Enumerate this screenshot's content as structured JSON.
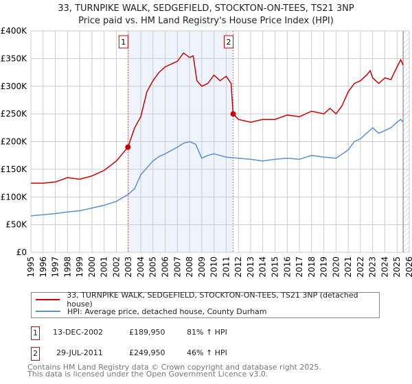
{
  "chart_data": {
    "type": "line",
    "title": "33, TURNPIKE WALK, SEDGEFIELD, STOCKTON-ON-TEES, TS21 3NP",
    "subtitle": "Price paid vs. HM Land Registry's House Price Index (HPI)",
    "xlim": [
      1995,
      2026
    ],
    "ylim": [
      0,
      400000
    ],
    "x_ticks": [
      "1995",
      "1996",
      "1997",
      "1998",
      "1999",
      "2000",
      "2001",
      "2002",
      "2003",
      "2004",
      "2005",
      "2006",
      "2007",
      "2008",
      "2009",
      "2010",
      "2011",
      "2012",
      "2013",
      "2014",
      "2015",
      "2016",
      "2017",
      "2018",
      "2019",
      "2020",
      "2021",
      "2022",
      "2023",
      "2024",
      "2025",
      "2026"
    ],
    "y_ticks": [
      {
        "v": 0,
        "label": "£0"
      },
      {
        "v": 50000,
        "label": "£50K"
      },
      {
        "v": 100000,
        "label": "£100K"
      },
      {
        "v": 150000,
        "label": "£150K"
      },
      {
        "v": 200000,
        "label": "£200K"
      },
      {
        "v": 250000,
        "label": "£250K"
      },
      {
        "v": 300000,
        "label": "£300K"
      },
      {
        "v": 350000,
        "label": "£350K"
      },
      {
        "v": 400000,
        "label": "£400K"
      }
    ],
    "grid": true,
    "series": [
      {
        "name": "33, TURNPIKE WALK, SEDGEFIELD, STOCKTON-ON-TEES, TS21 3NP (detached house)",
        "color": "#cc0000",
        "x": [
          1995,
          1996,
          1997,
          1998,
          1999,
          2000,
          2001,
          2002,
          2002.95,
          2003.5,
          2004,
          2004.5,
          2005,
          2005.5,
          2006,
          2006.5,
          2007,
          2007.5,
          2008,
          2008.3,
          2008.6,
          2009,
          2009.5,
          2010,
          2010.5,
          2011,
          2011.4,
          2011.57,
          2012,
          2013,
          2014,
          2015,
          2016,
          2017,
          2018,
          2019,
          2019.5,
          2020,
          2020.5,
          2021,
          2021.5,
          2022,
          2022.5,
          2022.8,
          2023,
          2023.5,
          2024,
          2024.5,
          2025,
          2025.3,
          2025.5
        ],
        "values": [
          125000,
          125000,
          127000,
          135000,
          132000,
          138000,
          148000,
          165000,
          189950,
          225000,
          245000,
          290000,
          310000,
          325000,
          335000,
          340000,
          345000,
          360000,
          352000,
          355000,
          310000,
          300000,
          305000,
          320000,
          310000,
          318000,
          305000,
          249950,
          240000,
          235000,
          240000,
          240000,
          248000,
          245000,
          255000,
          250000,
          260000,
          250000,
          265000,
          290000,
          305000,
          310000,
          320000,
          328000,
          315000,
          305000,
          315000,
          312000,
          335000,
          348000,
          338000
        ]
      },
      {
        "name": "HPI: Average price, detached house, County Durham",
        "color": "#5b8fd0",
        "x": [
          1995,
          1996,
          1997,
          1998,
          1999,
          2000,
          2001,
          2002,
          2003,
          2003.5,
          2004,
          2005,
          2005.5,
          2006,
          2007,
          2007.5,
          2008,
          2008.5,
          2009,
          2009.5,
          2010,
          2010.5,
          2011,
          2012,
          2013,
          2014,
          2015,
          2016,
          2017,
          2018,
          2019,
          2020,
          2021,
          2021.5,
          2022,
          2022.5,
          2023,
          2023.5,
          2024,
          2024.5,
          2025,
          2025.3,
          2025.5
        ],
        "values": [
          66000,
          68000,
          70000,
          73000,
          75000,
          80000,
          85000,
          92000,
          105000,
          115000,
          140000,
          165000,
          173000,
          178000,
          190000,
          197000,
          200000,
          195000,
          170000,
          175000,
          178000,
          175000,
          172000,
          170000,
          168000,
          165000,
          168000,
          170000,
          168000,
          175000,
          172000,
          170000,
          185000,
          200000,
          205000,
          215000,
          225000,
          215000,
          220000,
          225000,
          235000,
          240000,
          235000
        ]
      }
    ],
    "sales": [
      {
        "id": "1",
        "x": 2002.95,
        "value": 189950
      },
      {
        "id": "2",
        "x": 2011.57,
        "value": 249950
      }
    ],
    "shaded_range": [
      2002.95,
      2011.57
    ],
    "hatched_from": 2025.5
  },
  "table": [
    {
      "id": "1",
      "date": "13-DEC-2002",
      "price": "£189,950",
      "hpi": "81% ↑ HPI"
    },
    {
      "id": "2",
      "date": "29-JUL-2011",
      "price": "£249,950",
      "hpi": "46% ↑ HPI"
    }
  ],
  "footer": {
    "line1": "Contains HM Land Registry data © Crown copyright and database right 2025.",
    "line2": "This data is licensed under the Open Government Licence v3.0."
  }
}
